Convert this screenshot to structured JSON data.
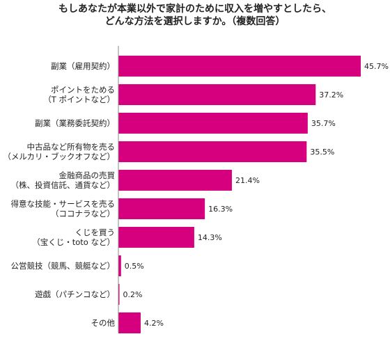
{
  "chart_data": {
    "type": "bar",
    "orientation": "horizontal",
    "title_lines": [
      "もしあなたが本業以外で家計のために収入を増やすとしたら、",
      "どんな方法を選択しますか。（複数回答）"
    ],
    "categories": [
      [
        "副業（雇用契約）"
      ],
      [
        "ポイントをためる",
        "（T ポイントなど）"
      ],
      [
        "副業（業務委託契約）"
      ],
      [
        "中古品など所有物を売る",
        "（メルカリ・ブックオフなど）"
      ],
      [
        "金融商品の売買",
        "（株、投資信託、通貨など）"
      ],
      [
        "得意な技能・サービスを売る",
        "（ココナラなど）"
      ],
      [
        "くじを買う",
        "（宝くじ・toto など）"
      ],
      [
        "公営競技（競馬、競艇など）"
      ],
      [
        "遊戯（パチンコなど）"
      ],
      [
        "その他"
      ]
    ],
    "values": [
      45.7,
      37.2,
      35.7,
      35.5,
      21.4,
      16.3,
      14.3,
      0.5,
      0.2,
      4.2
    ],
    "value_labels": [
      "45.7%",
      "37.2%",
      "35.7%",
      "35.5%",
      "21.4%",
      "16.3%",
      "14.3%",
      "0.5%",
      "0.2%",
      "4.2%"
    ],
    "bar_color": "#d6007f",
    "axis_color": "#888888",
    "xlim": [
      0,
      50
    ],
    "grid": false
  }
}
